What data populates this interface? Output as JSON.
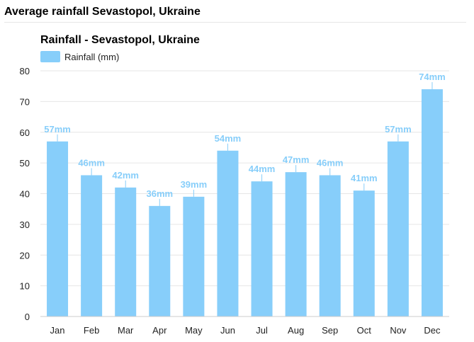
{
  "page": {
    "heading": "Average rainfall Sevastopol, Ukraine"
  },
  "colors": {
    "bar": "#87cefa",
    "label": "#87cefa",
    "grid": "#e6e6e6",
    "axis": "#cccccc"
  },
  "chart_data": {
    "type": "bar",
    "title": "Rainfall - Sevastopol, Ukraine",
    "xlabel": "",
    "ylabel": "",
    "ylim": [
      0,
      80
    ],
    "yticks": [
      0,
      10,
      20,
      30,
      40,
      50,
      60,
      70,
      80
    ],
    "grid": true,
    "legend_position": "top-left",
    "categories": [
      "Jan",
      "Feb",
      "Mar",
      "Apr",
      "May",
      "Jun",
      "Jul",
      "Aug",
      "Sep",
      "Oct",
      "Nov",
      "Dec"
    ],
    "series": [
      {
        "name": "Rainfall (mm)",
        "values": [
          57,
          46,
          42,
          36,
          39,
          54,
          44,
          47,
          46,
          41,
          57,
          74
        ],
        "labels": [
          "57mm",
          "46mm",
          "42mm",
          "36mm",
          "39mm",
          "54mm",
          "44mm",
          "47mm",
          "46mm",
          "41mm",
          "57mm",
          "74mm"
        ]
      }
    ]
  }
}
